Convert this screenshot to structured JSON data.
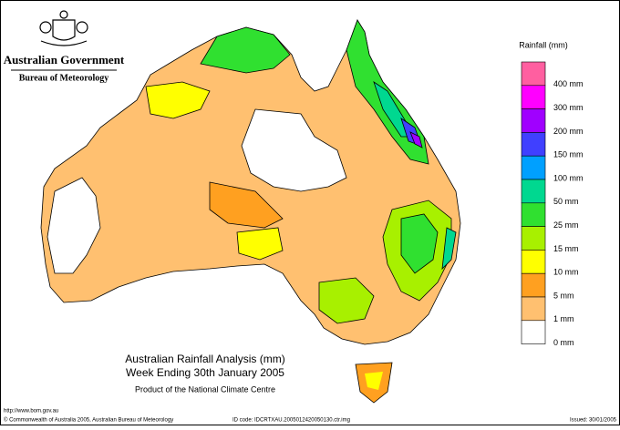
{
  "header": {
    "government": "Australian Government",
    "bureau": "Bureau of Meteorology"
  },
  "title": {
    "line1": "Australian Rainfall Analysis (mm)",
    "line2": "Week Ending 30th January 2005",
    "line3": "Product of the National Climate Centre"
  },
  "legend": {
    "title": "Rainfall (mm)",
    "items": [
      {
        "label": "400 mm",
        "color": "#ff5fa0"
      },
      {
        "label": "300 mm",
        "color": "#ff00ff"
      },
      {
        "label": "200 mm",
        "color": "#a000ff"
      },
      {
        "label": "150 mm",
        "color": "#4040ff"
      },
      {
        "label": "100 mm",
        "color": "#00a0ff"
      },
      {
        "label": "50 mm",
        "color": "#00d890"
      },
      {
        "label": "25 mm",
        "color": "#30e030"
      },
      {
        "label": "15 mm",
        "color": "#a8f000"
      },
      {
        "label": "10 mm",
        "color": "#ffff00"
      },
      {
        "label": "5 mm",
        "color": "#ffa020"
      },
      {
        "label": "1 mm",
        "color": "#ffc070"
      },
      {
        "label": "0 mm",
        "color": "#ffffff"
      }
    ]
  },
  "footer": {
    "url": "http://www.bom.gov.au",
    "copyright": "© Commonwealth of Australia 2005, Australian Bureau of Meteorology",
    "id": "ID code: IDCRTXAU.2005012420050130.ctr.img",
    "issued": "Issued: 30/01/2005"
  }
}
